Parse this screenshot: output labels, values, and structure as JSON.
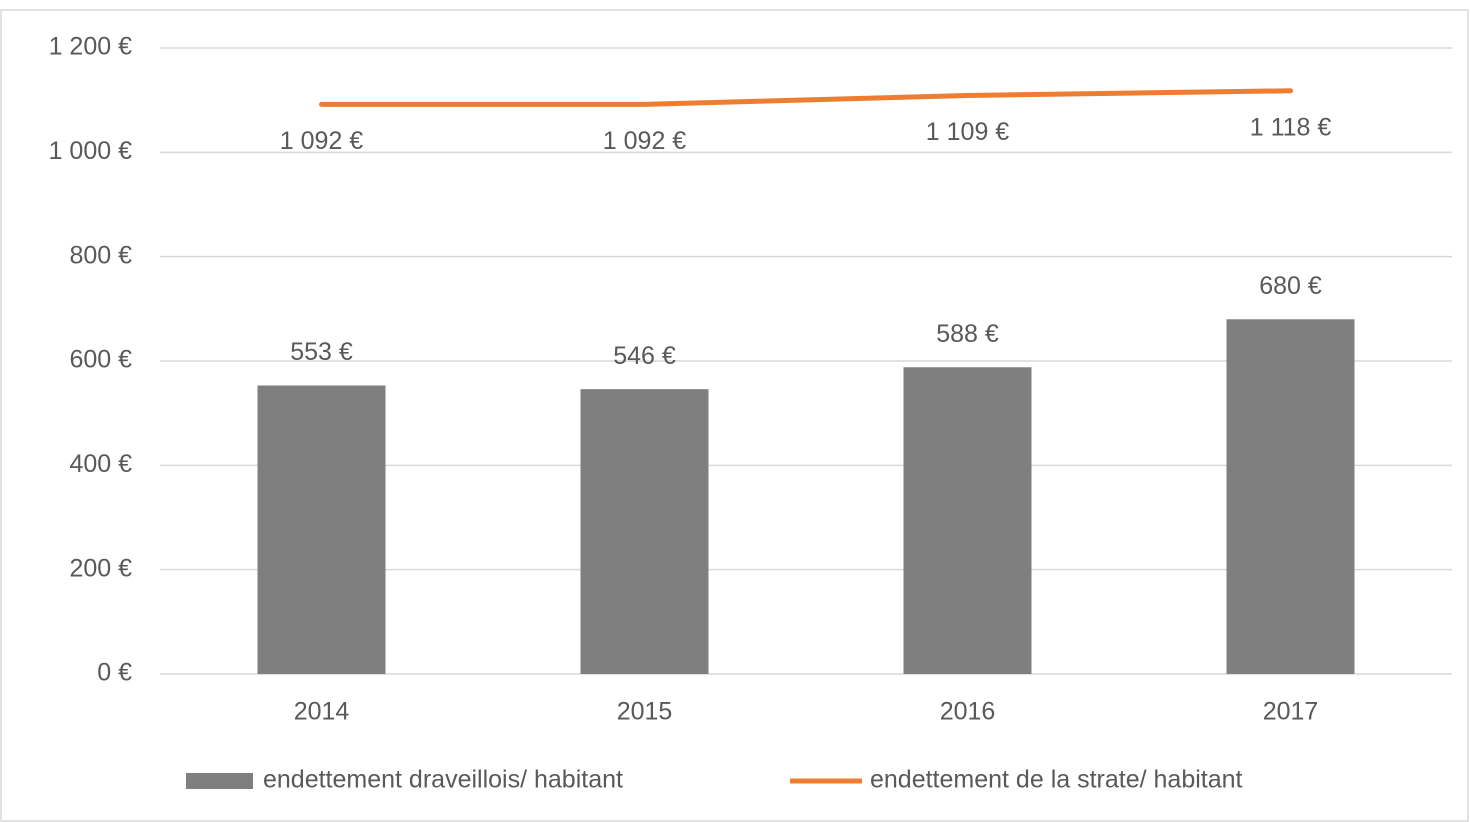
{
  "chart_data": {
    "type": "bar",
    "categories": [
      "2014",
      "2015",
      "2016",
      "2017"
    ],
    "series": [
      {
        "name": "endettement draveillois/ habitant",
        "type": "bar",
        "color": "#7f7f7f",
        "values": [
          553,
          546,
          588,
          680
        ],
        "value_labels": [
          "553 €",
          "546 €",
          "588 €",
          "680 €"
        ]
      },
      {
        "name": "endettement de la strate/ habitant",
        "type": "line",
        "color": "#ed7d31",
        "values": [
          1092,
          1092,
          1109,
          1118
        ],
        "value_labels": [
          "1 092 €",
          "1 092 €",
          "1 109 €",
          "1 118 €"
        ]
      }
    ],
    "ylim": [
      0,
      1200
    ],
    "yticks": [
      {
        "value": 0,
        "label": "0 €"
      },
      {
        "value": 200,
        "label": "200 €"
      },
      {
        "value": 400,
        "label": "400 €"
      },
      {
        "value": 600,
        "label": "600 €"
      },
      {
        "value": 800,
        "label": "800 €"
      },
      {
        "value": 1000,
        "label": "1 000 €"
      },
      {
        "value": 1200,
        "label": "1 200 €"
      }
    ],
    "grid": true,
    "legend": "bottom"
  }
}
